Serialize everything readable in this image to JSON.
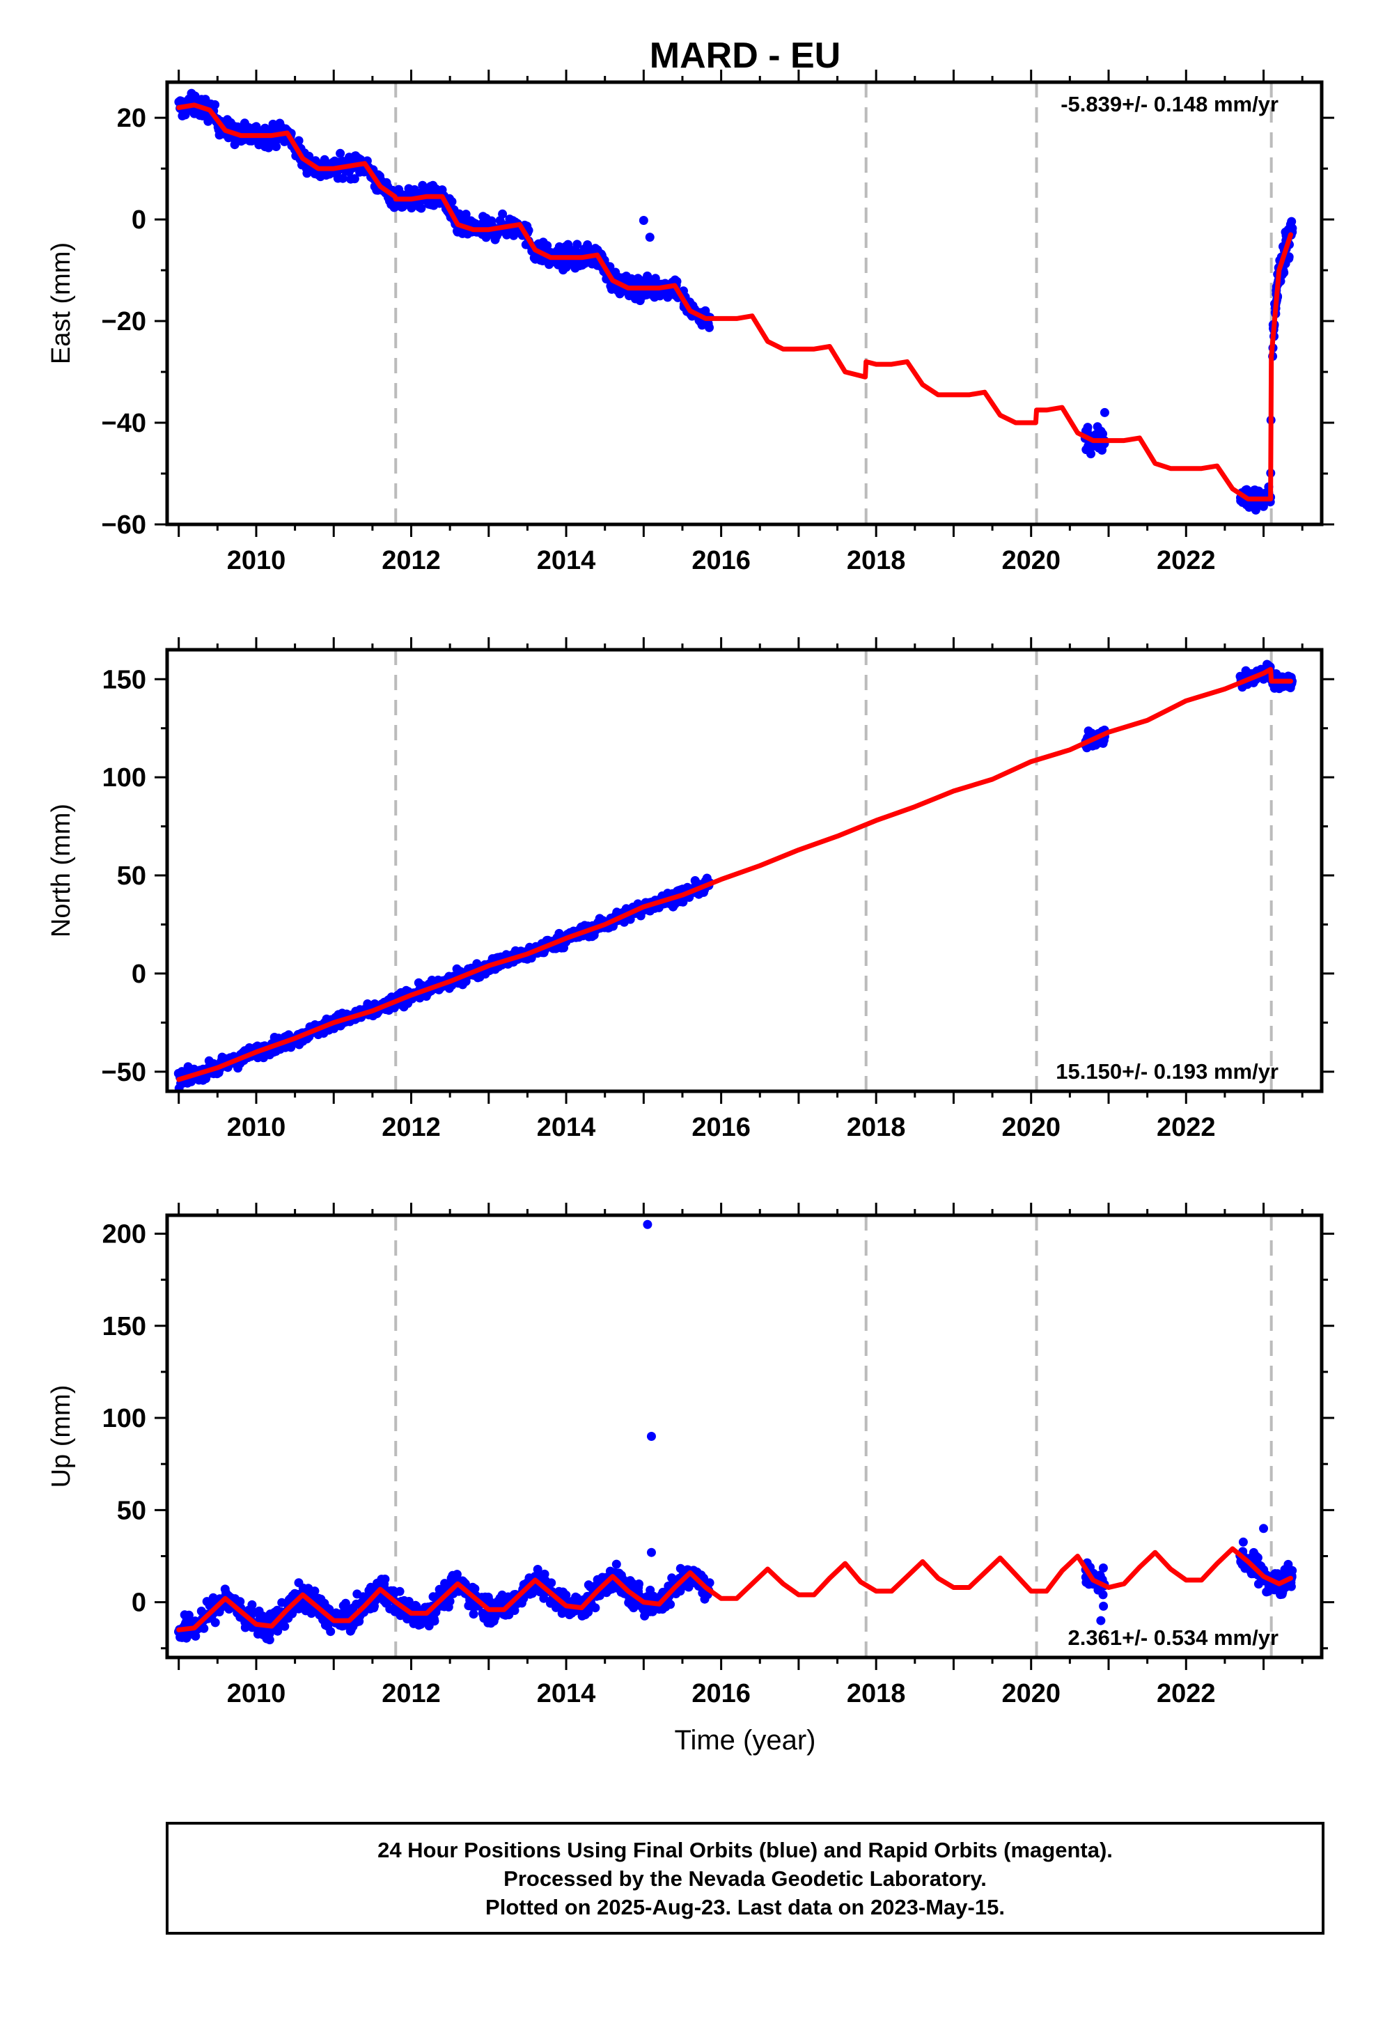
{
  "title": "MARD - EU",
  "colors": {
    "data": "#0000ff",
    "model": "#ff0000",
    "offset_line": "#bbbbbb",
    "frame": "#000000"
  },
  "xlabel": "Time (year)",
  "caption": [
    "24 Hour Positions Using Final Orbits (blue) and Rapid Orbits (magenta).",
    "Processed by the Nevada Geodetic Laboratory.",
    "Plotted on 2025-Aug-23. Last data on 2023-May-15."
  ],
  "chart_data": [
    {
      "type": "scatter",
      "id": "east",
      "ylabel": "East (mm)",
      "rate_label": "-5.839+/- 0.148 mm/yr",
      "rate_position": "top-right",
      "xlim": [
        2008.85,
        2023.75
      ],
      "ylim": [
        -60,
        27
      ],
      "x_ticks": [
        2010,
        2012,
        2014,
        2016,
        2018,
        2020,
        2022
      ],
      "y_ticks": [
        -60,
        -40,
        -20,
        0,
        20
      ],
      "offset_lines_x": [
        2011.8,
        2017.87,
        2020.07,
        2023.1
      ],
      "model": {
        "x": [
          2009.0,
          2009.2,
          2009.4,
          2009.6,
          2009.8,
          2010.0,
          2010.2,
          2010.4,
          2010.6,
          2010.8,
          2011.0,
          2011.2,
          2011.4,
          2011.6,
          2011.79,
          2011.8,
          2012.0,
          2012.2,
          2012.4,
          2012.6,
          2012.8,
          2013.0,
          2013.2,
          2013.4,
          2013.6,
          2013.8,
          2014.0,
          2014.2,
          2014.4,
          2014.6,
          2014.8,
          2015.0,
          2015.2,
          2015.4,
          2015.6,
          2015.8,
          2016.0,
          2016.2,
          2016.4,
          2016.6,
          2016.8,
          2017.0,
          2017.2,
          2017.4,
          2017.6,
          2017.86,
          2017.87,
          2018.0,
          2018.2,
          2018.4,
          2018.6,
          2018.8,
          2019.0,
          2019.2,
          2019.4,
          2019.6,
          2019.8,
          2020.06,
          2020.07,
          2020.2,
          2020.4,
          2020.6,
          2020.8,
          2021.0,
          2021.2,
          2021.4,
          2021.6,
          2021.8,
          2022.0,
          2022.2,
          2022.4,
          2022.6,
          2022.8,
          2023.0,
          2023.09,
          2023.1,
          2023.2,
          2023.35
        ],
        "y": [
          22.0,
          22.5,
          21.5,
          17.5,
          16.5,
          16.5,
          16.5,
          17.0,
          12.0,
          10.0,
          10.0,
          10.5,
          11.0,
          6.5,
          4.5,
          4.0,
          4.0,
          4.5,
          4.5,
          -1.0,
          -2.0,
          -2.0,
          -1.5,
          -1.0,
          -6.0,
          -7.5,
          -7.5,
          -7.5,
          -7.0,
          -12.0,
          -13.5,
          -13.5,
          -13.5,
          -13.0,
          -18.0,
          -19.5,
          -19.5,
          -19.5,
          -19.0,
          -24.0,
          -25.5,
          -25.5,
          -25.5,
          -25.0,
          -30.0,
          -31.0,
          -28.0,
          -28.5,
          -28.5,
          -28.0,
          -32.5,
          -34.5,
          -34.5,
          -34.5,
          -34.0,
          -38.5,
          -40.0,
          -40.0,
          -37.5,
          -37.5,
          -37.0,
          -42.0,
          -43.5,
          -43.5,
          -43.5,
          -43.0,
          -48.0,
          -49.0,
          -49.0,
          -49.0,
          -48.5,
          -53.0,
          -55.0,
          -55.0,
          -55.0,
          -27.0,
          -10.0,
          -3.0
        ]
      },
      "observations": {
        "ranges": [
          {
            "x_from": 2009.0,
            "x_to": 2015.85,
            "noise": 1.5,
            "count": 950
          },
          {
            "x_from": 2020.7,
            "x_to": 2020.95,
            "noise": 2.0,
            "count": 40
          },
          {
            "x_from": 2022.7,
            "x_to": 2023.1,
            "noise": 1.5,
            "count": 70
          },
          {
            "x_from": 2023.12,
            "x_to": 2023.37,
            "noise": 2.5,
            "count": 90
          }
        ],
        "outliers": [
          {
            "x": 2015.0,
            "y": -0.2
          },
          {
            "x": 2015.08,
            "y": -3.5
          },
          {
            "x": 2020.95,
            "y": -38.0
          }
        ]
      }
    },
    {
      "type": "scatter",
      "id": "north",
      "ylabel": "North (mm)",
      "rate_label": "15.150+/- 0.193 mm/yr",
      "rate_position": "bottom-right",
      "xlim": [
        2008.85,
        2023.75
      ],
      "ylim": [
        -60,
        165
      ],
      "x_ticks": [
        2010,
        2012,
        2014,
        2016,
        2018,
        2020,
        2022
      ],
      "y_ticks": [
        -50,
        0,
        50,
        100,
        150
      ],
      "offset_lines_x": [
        2011.8,
        2017.87,
        2020.07,
        2023.1
      ],
      "model": {
        "x": [
          2009.0,
          2009.5,
          2010.0,
          2010.5,
          2011.0,
          2011.5,
          2012.0,
          2012.5,
          2013.0,
          2013.5,
          2014.0,
          2014.5,
          2015.0,
          2015.5,
          2016.0,
          2016.5,
          2017.0,
          2017.5,
          2018.0,
          2018.5,
          2019.0,
          2019.5,
          2020.0,
          2020.5,
          2021.0,
          2021.5,
          2022.0,
          2022.5,
          2023.0,
          2023.09,
          2023.1,
          2023.35
        ],
        "y": [
          -54.0,
          -48.0,
          -40.0,
          -33.0,
          -25.0,
          -19.0,
          -11.0,
          -4.0,
          4.0,
          10.0,
          18.0,
          25.0,
          34.0,
          40.0,
          48.0,
          55.0,
          63.0,
          70.0,
          78.0,
          85.0,
          93.0,
          99.0,
          108.0,
          114.0,
          123.0,
          129.0,
          139.0,
          145.0,
          153.0,
          155.0,
          149.0,
          149.0
        ]
      },
      "observations": {
        "ranges": [
          {
            "x_from": 2009.0,
            "x_to": 2015.85,
            "noise": 2.5,
            "count": 950
          },
          {
            "x_from": 2020.7,
            "x_to": 2020.95,
            "noise": 3.0,
            "count": 40
          },
          {
            "x_from": 2022.7,
            "x_to": 2023.1,
            "noise": 2.5,
            "count": 70
          },
          {
            "x_from": 2023.12,
            "x_to": 2023.37,
            "noise": 2.5,
            "count": 90
          }
        ],
        "outliers": []
      }
    },
    {
      "type": "scatter",
      "id": "up",
      "ylabel": "Up (mm)",
      "xlabel": "Time (year)",
      "rate_label": "2.361+/- 0.534 mm/yr",
      "rate_position": "bottom-right",
      "xlim": [
        2008.85,
        2023.75
      ],
      "ylim": [
        -30,
        210
      ],
      "x_ticks": [
        2010,
        2012,
        2014,
        2016,
        2018,
        2020,
        2022
      ],
      "y_ticks": [
        0,
        50,
        100,
        150,
        200
      ],
      "offset_lines_x": [
        2011.8,
        2017.87,
        2020.07,
        2023.1
      ],
      "model": {
        "x": [
          2009.0,
          2009.2,
          2009.4,
          2009.6,
          2009.8,
          2010.0,
          2010.2,
          2010.4,
          2010.6,
          2010.8,
          2011.0,
          2011.2,
          2011.4,
          2011.6,
          2011.8,
          2012.0,
          2012.2,
          2012.4,
          2012.6,
          2012.8,
          2013.0,
          2013.2,
          2013.4,
          2013.6,
          2013.8,
          2014.0,
          2014.2,
          2014.4,
          2014.6,
          2014.8,
          2015.0,
          2015.2,
          2015.4,
          2015.6,
          2015.8,
          2016.0,
          2016.2,
          2016.4,
          2016.6,
          2016.8,
          2017.0,
          2017.2,
          2017.4,
          2017.6,
          2017.8,
          2018.0,
          2018.2,
          2018.4,
          2018.6,
          2018.8,
          2019.0,
          2019.2,
          2019.4,
          2019.6,
          2019.8,
          2020.0,
          2020.2,
          2020.4,
          2020.6,
          2020.8,
          2021.0,
          2021.2,
          2021.4,
          2021.6,
          2021.8,
          2022.0,
          2022.2,
          2022.4,
          2022.6,
          2022.8,
          2023.0,
          2023.2,
          2023.35
        ],
        "y": [
          -15.0,
          -14.0,
          -6.0,
          2.0,
          -5.0,
          -12.0,
          -13.0,
          -4.0,
          4.0,
          -3.0,
          -10.0,
          -10.0,
          -2.0,
          7.0,
          0.0,
          -6.0,
          -6.0,
          2.0,
          10.0,
          3.0,
          -4.0,
          -4.0,
          4.0,
          12.0,
          5.0,
          -2.0,
          -3.0,
          6.0,
          14.0,
          6.0,
          0.0,
          -1.0,
          8.0,
          16.0,
          8.0,
          2.0,
          2.0,
          10.0,
          18.0,
          10.0,
          4.0,
          4.0,
          13.0,
          21.0,
          11.0,
          6.0,
          6.0,
          14.0,
          22.0,
          13.0,
          8.0,
          8.0,
          16.0,
          24.0,
          15.0,
          6.0,
          6.0,
          17.0,
          25.0,
          12.0,
          8.0,
          10.0,
          19.0,
          27.0,
          18.0,
          12.0,
          12.0,
          21.0,
          29.0,
          22.0,
          14.0,
          10.0,
          13.0
        ]
      },
      "observations": {
        "ranges": [
          {
            "x_from": 2009.0,
            "x_to": 2015.85,
            "noise": 5.0,
            "count": 950
          },
          {
            "x_from": 2020.7,
            "x_to": 2020.95,
            "noise": 6.0,
            "count": 40
          },
          {
            "x_from": 2022.7,
            "x_to": 2023.1,
            "noise": 5.0,
            "count": 70
          },
          {
            "x_from": 2023.12,
            "x_to": 2023.37,
            "noise": 4.0,
            "count": 90
          }
        ],
        "outliers": [
          {
            "x": 2015.05,
            "y": 205.0
          },
          {
            "x": 2015.1,
            "y": 90.0
          },
          {
            "x": 2015.1,
            "y": 27.0
          },
          {
            "x": 2023.0,
            "y": 40.0
          },
          {
            "x": 2020.9,
            "y": -10.0
          }
        ]
      }
    }
  ]
}
